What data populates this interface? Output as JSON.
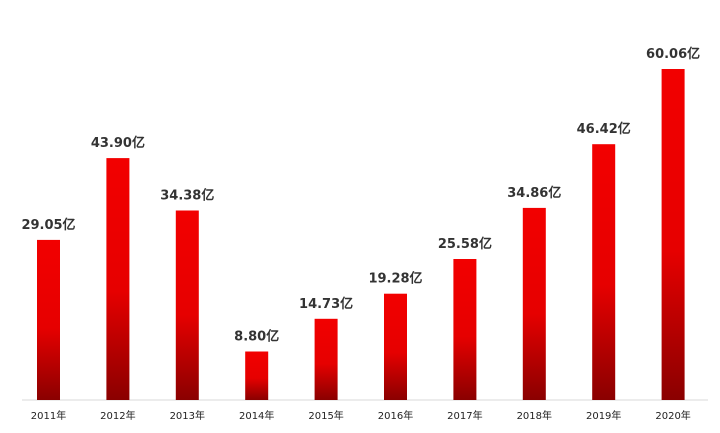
{
  "chart_data": {
    "type": "bar",
    "categories": [
      "2011年",
      "2012年",
      "2013年",
      "2014年",
      "2015年",
      "2016年",
      "2017年",
      "2018年",
      "2019年",
      "2020年"
    ],
    "values": [
      29.05,
      43.9,
      34.38,
      8.8,
      14.73,
      19.28,
      25.58,
      34.86,
      46.42,
      60.06
    ],
    "value_labels": [
      "29.05亿",
      "43.90亿",
      "34.38亿",
      "8.80亿",
      "14.73亿",
      "19.28亿",
      "25.58亿",
      "34.86亿",
      "46.42亿",
      "60.06亿"
    ],
    "title": "",
    "xlabel": "",
    "ylabel": "",
    "ylim": [
      0,
      60.06
    ],
    "grid": false,
    "legend": "none",
    "colors": {
      "bar_top": "#f20000",
      "bar_mid": "#e60000",
      "bar_bottom": "#8a0000",
      "baseline": "#d9d9d9",
      "label": "#333333"
    }
  }
}
